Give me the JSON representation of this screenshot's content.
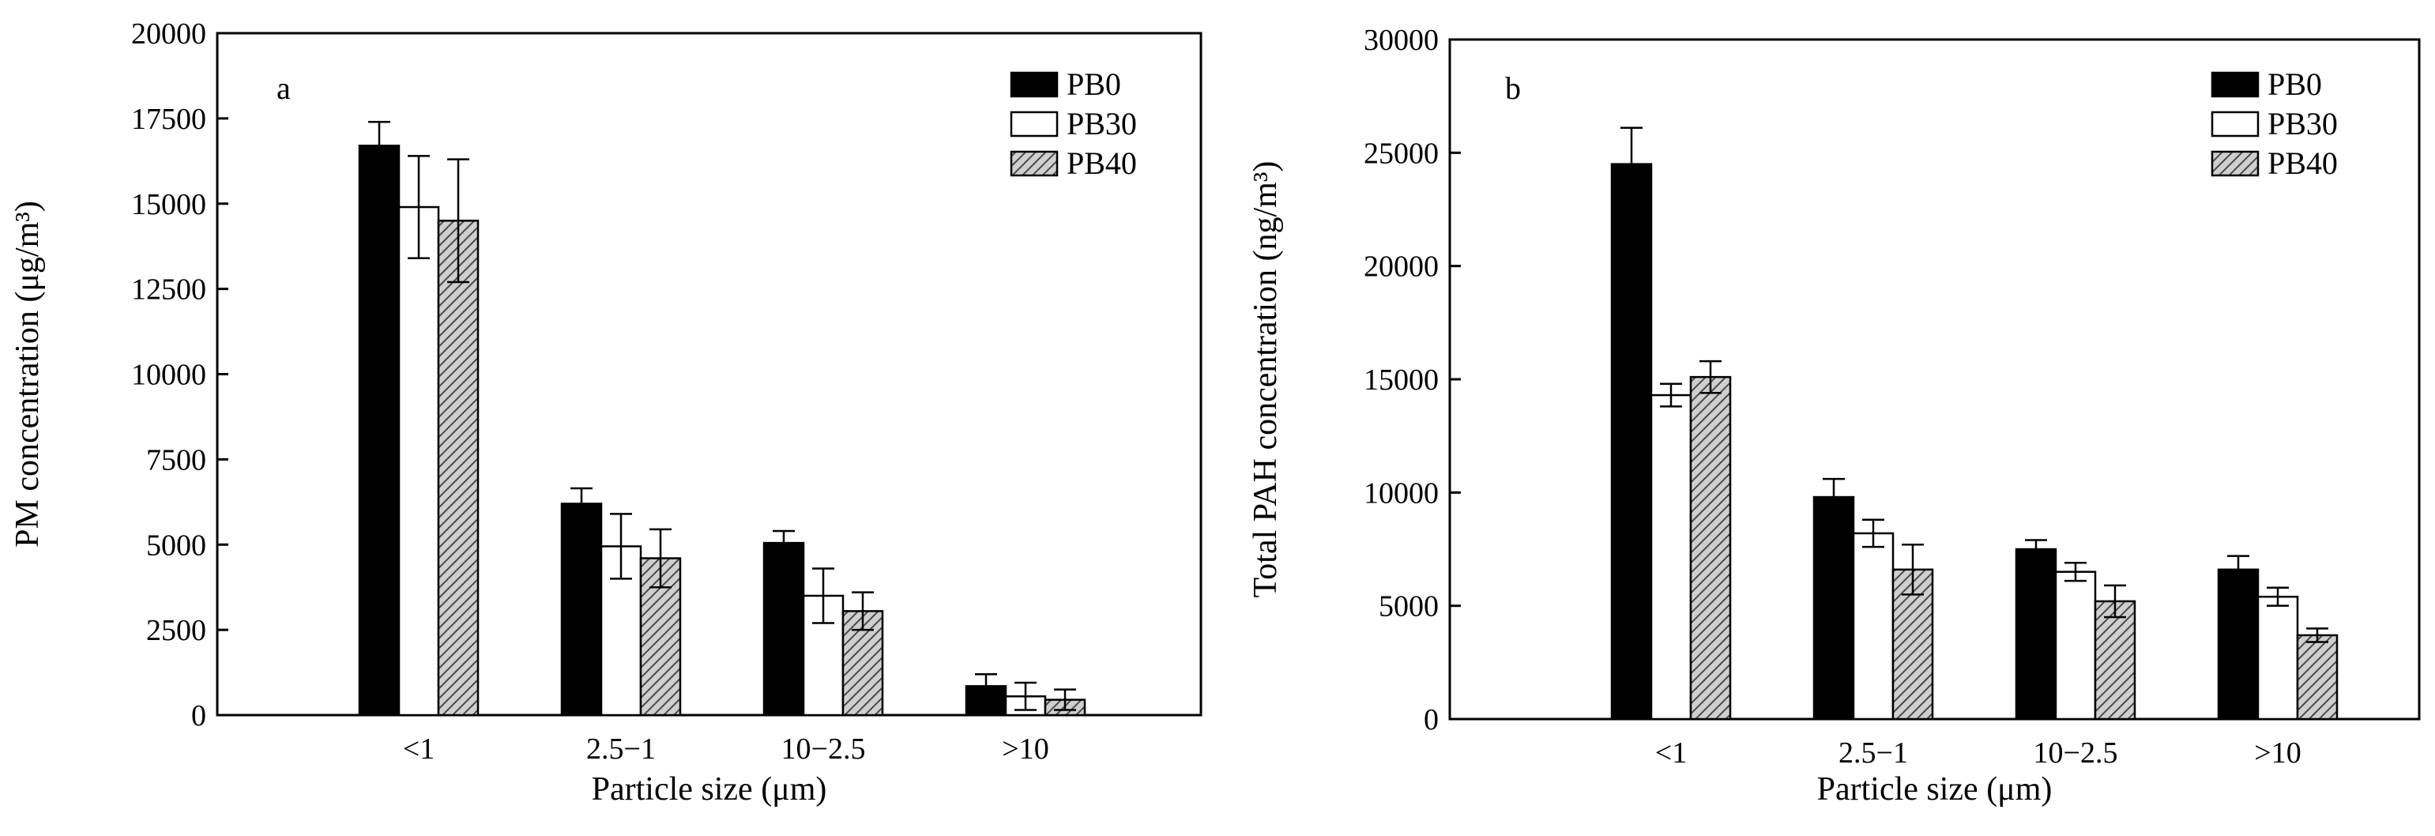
{
  "chart_data": [
    {
      "type": "bar",
      "panel_label": "a",
      "xlabel": "Particle size (μm)",
      "ylabel": "PM concentration  (μg/m³)",
      "ylim": [
        0,
        20000
      ],
      "yticks": [
        "0",
        "2500",
        "5000",
        "7500",
        "10000",
        "12500",
        "15000",
        "17500",
        "20000"
      ],
      "categories": [
        "<1",
        "2.5−1",
        "10−2.5",
        ">10"
      ],
      "legend_position": "top-right",
      "series": [
        {
          "name": "PB0",
          "fill": "solid",
          "values": [
            16700,
            6200,
            5050,
            850
          ],
          "errors": [
            700,
            450,
            350,
            350
          ]
        },
        {
          "name": "PB30",
          "fill": "white",
          "values": [
            14900,
            4950,
            3500,
            550
          ],
          "errors": [
            1500,
            950,
            800,
            400
          ]
        },
        {
          "name": "PB40",
          "fill": "hatched",
          "values": [
            14500,
            4600,
            3050,
            450
          ],
          "errors": [
            1800,
            850,
            550,
            300
          ]
        }
      ]
    },
    {
      "type": "bar",
      "panel_label": "b",
      "xlabel": "Particle size (μm)",
      "ylabel": "Total PAH concentration  (ng/m³)",
      "ylim": [
        0,
        30000
      ],
      "yticks": [
        "0",
        "5000",
        "10000",
        "15000",
        "20000",
        "25000",
        "30000"
      ],
      "categories": [
        "<1",
        "2.5−1",
        "10−2.5",
        ">10"
      ],
      "legend_position": "top-right",
      "series": [
        {
          "name": "PB0",
          "fill": "solid",
          "values": [
            24500,
            9800,
            7500,
            6600
          ],
          "errors": [
            1600,
            800,
            400,
            600
          ]
        },
        {
          "name": "PB30",
          "fill": "white",
          "values": [
            14300,
            8200,
            6500,
            5400
          ],
          "errors": [
            500,
            600,
            400,
            400
          ]
        },
        {
          "name": "PB40",
          "fill": "hatched",
          "values": [
            15100,
            6600,
            5200,
            3700
          ],
          "errors": [
            700,
            1100,
            700,
            300
          ]
        }
      ]
    }
  ]
}
